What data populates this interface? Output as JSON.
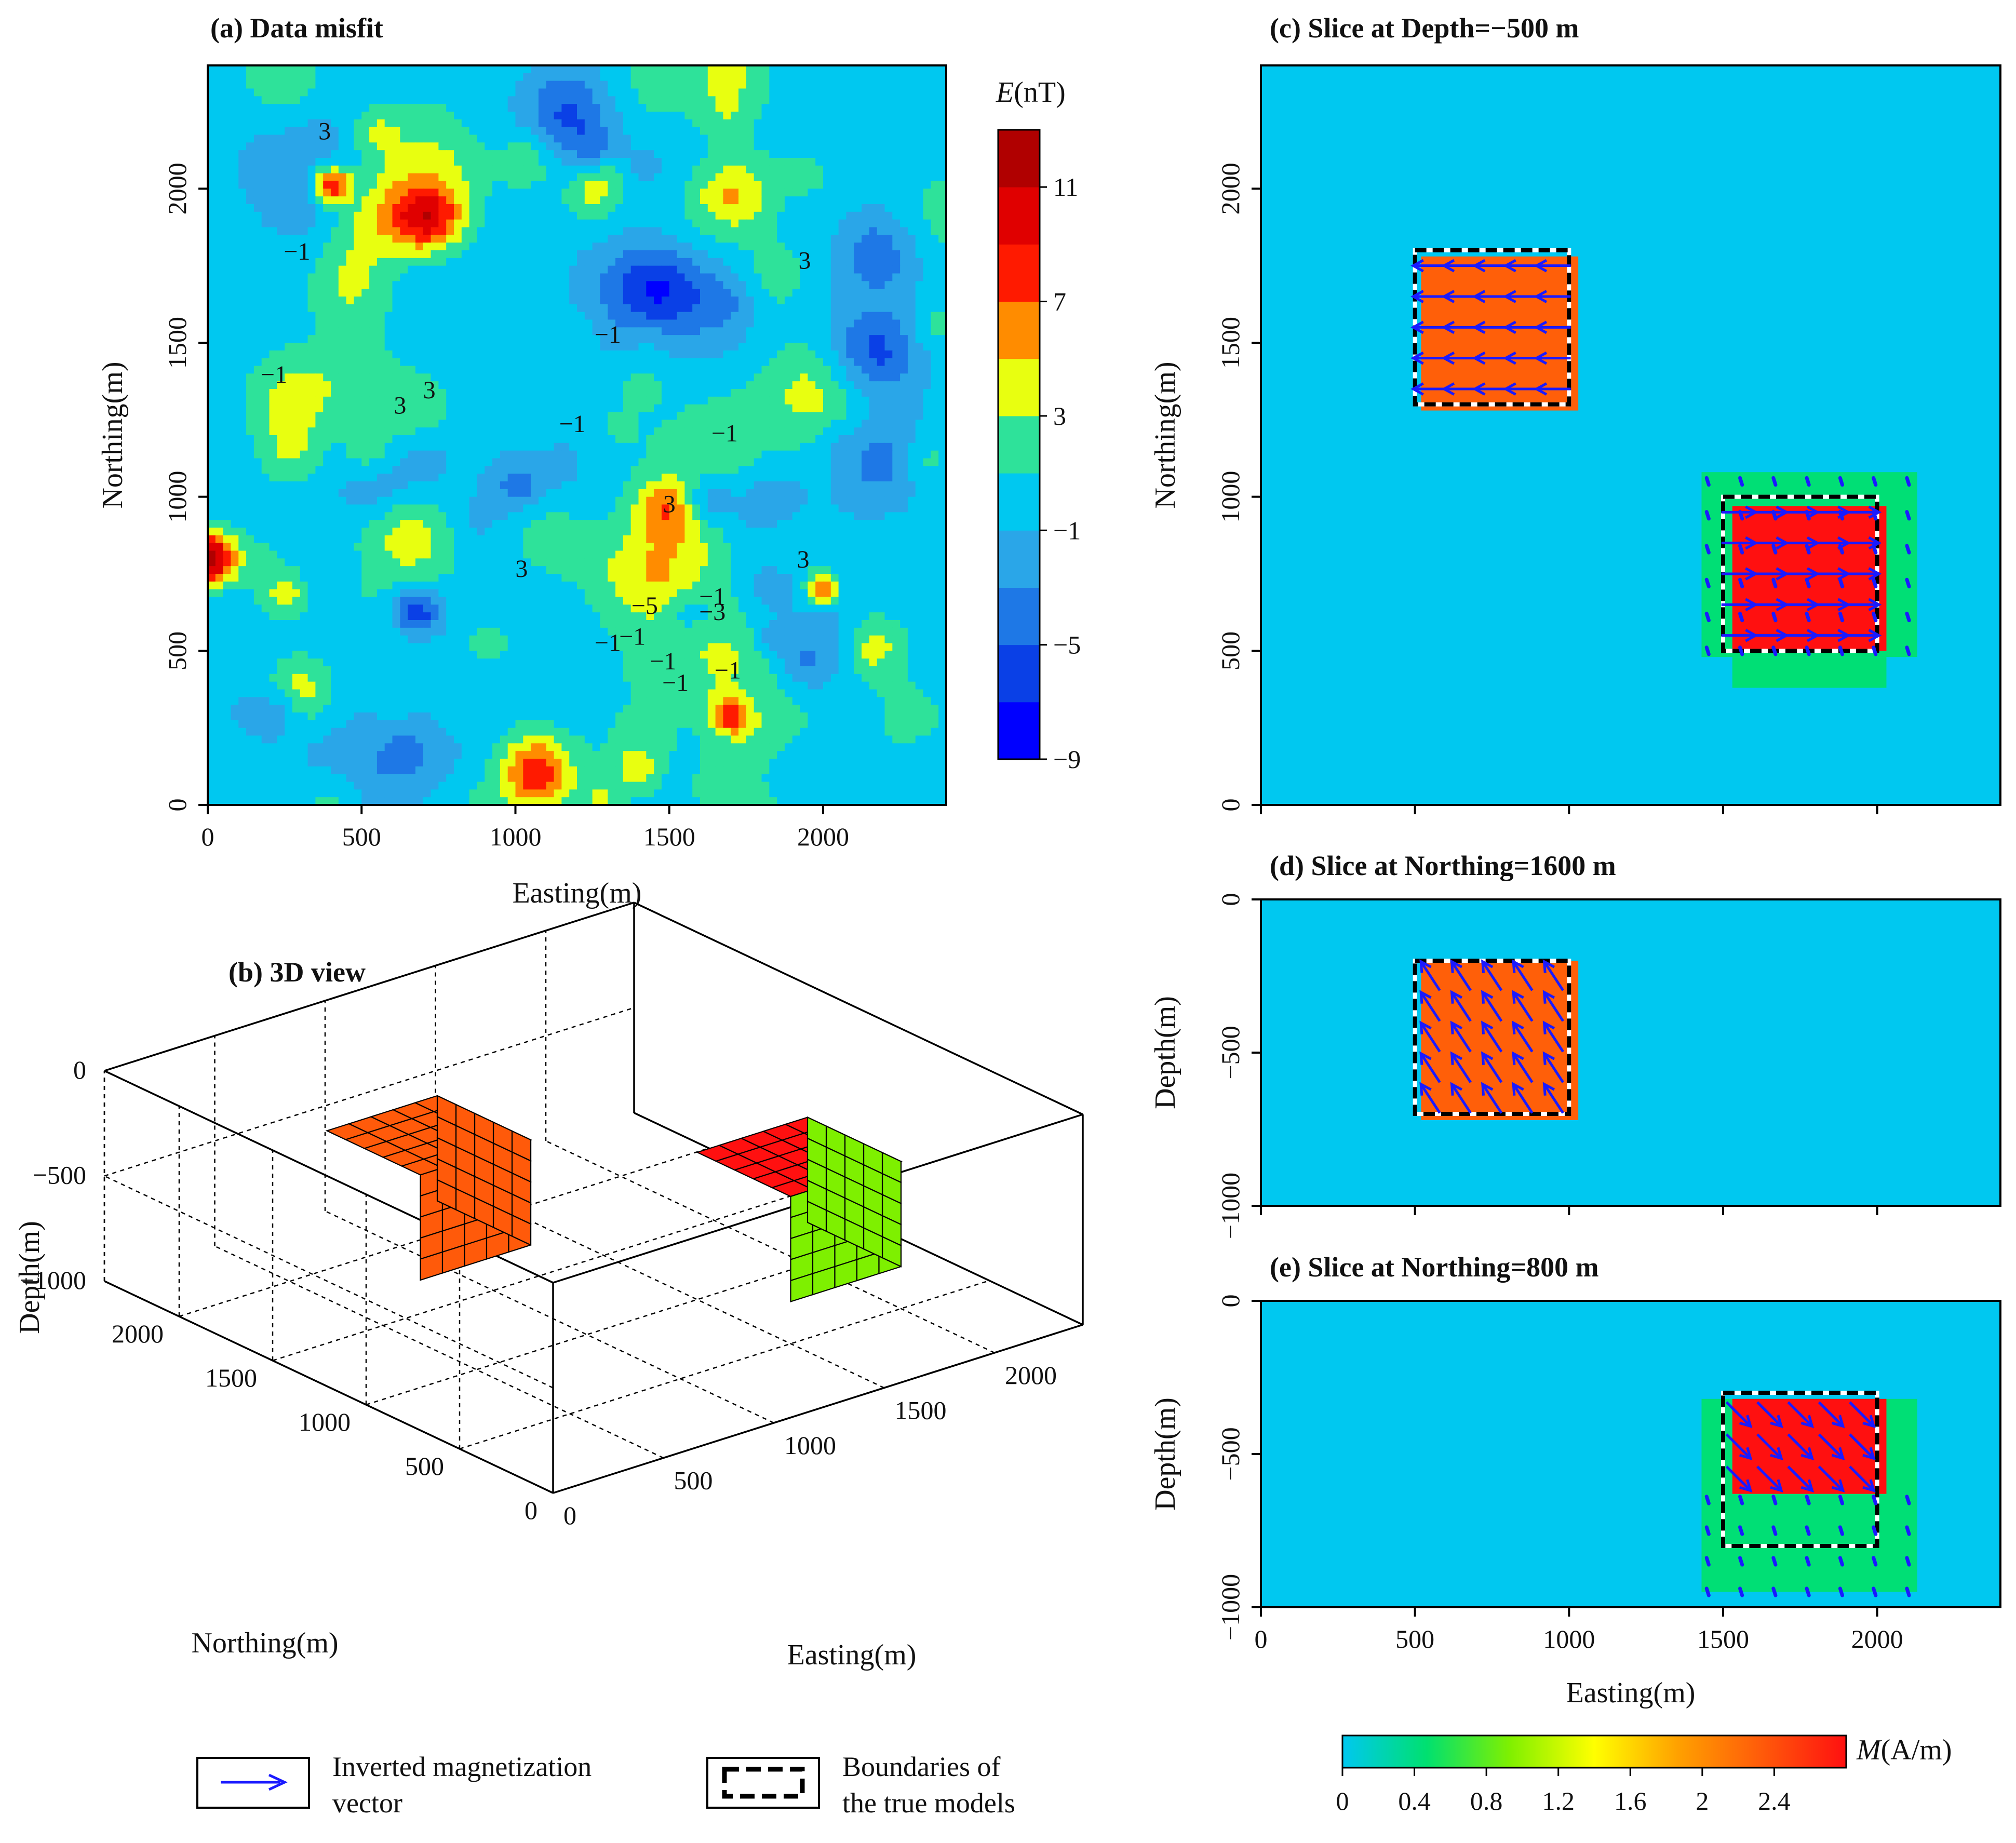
{
  "chart_data": [
    {
      "id": "a",
      "type": "contour",
      "title": "(a) Data misfit",
      "xlabel": "Easting(m)",
      "ylabel": "Northing(m)",
      "xlim": [
        0,
        2400
      ],
      "ylim": [
        0,
        2400
      ],
      "xticks": [
        "0",
        "500",
        "1000",
        "1500",
        "2000"
      ],
      "yticks": [
        "0",
        "500",
        "1000",
        "1500",
        "2000"
      ],
      "colorbar": {
        "title_italic": "E",
        "title_rest": "(nT)",
        "levels": [
          -9,
          -7,
          -5,
          -3,
          -1,
          1,
          3,
          5,
          7,
          9,
          11,
          13
        ],
        "tick_labels": [
          "11",
          "7",
          "3",
          "−1",
          "−5",
          "−9"
        ],
        "colors": [
          "#0000ff",
          "#0a40e6",
          "#1e78e6",
          "#2aa6e8",
          "#00c8f0",
          "#2ee29a",
          "#e8ff10",
          "#ff8c00",
          "#ff1a00",
          "#e00000",
          "#b00000"
        ]
      },
      "contour_labels": [
        "3",
        "−1",
        "3",
        "−1",
        "3",
        "−1",
        "−1",
        "3",
        "−1",
        "3",
        "3",
        "−1",
        "3",
        "−1",
        "−1",
        "−1",
        "−1",
        "−3",
        "−5",
        "−1"
      ]
    },
    {
      "id": "b",
      "type": "3d-voxel",
      "title": "(b) 3D view",
      "zlabel": "Depth(m)",
      "ylabel": "Northing(m)",
      "xlabel": "Easting(m)",
      "zticks": [
        "0",
        "−500",
        "−1000"
      ],
      "yticks": [
        "2000",
        "1500",
        "1000",
        "500",
        "0"
      ],
      "xticks": [
        "0",
        "500",
        "1000",
        "1500",
        "2000"
      ],
      "bodies": [
        {
          "name": "body-1",
          "easting": [
            500,
            1000
          ],
          "northing": [
            1300,
            1800
          ],
          "depth": [
            -200,
            -700
          ],
          "color": "#ff5a0a"
        },
        {
          "name": "body-2",
          "easting": [
            1500,
            2000
          ],
          "northing": [
            500,
            1000
          ],
          "depth": [
            -300,
            -800
          ],
          "color": "#7ef000",
          "top_color": "#ff1010"
        }
      ]
    },
    {
      "id": "c",
      "type": "heatmap-slice",
      "title": "(c) Slice at Depth=−500 m",
      "ylabel": "Northing(m)",
      "xlim": [
        0,
        2400
      ],
      "ylim": [
        0,
        2400
      ],
      "yticks": [
        "0",
        "500",
        "1000",
        "1500",
        "2000"
      ],
      "cells": [
        {
          "easting": [
            1430,
            2130
          ],
          "northing": [
            480,
            1080
          ],
          "value": 0.45
        },
        {
          "easting": [
            1530,
            2030
          ],
          "northing": [
            380,
            480
          ],
          "value": 0.45
        },
        {
          "easting": [
            1530,
            2030
          ],
          "northing": [
            500,
            970
          ],
          "value": 2.8
        },
        {
          "easting": [
            520,
            1030
          ],
          "northing": [
            1280,
            1780
          ],
          "value": 2.3
        }
      ],
      "true_boxes": [
        {
          "easting": [
            500,
            1000
          ],
          "northing": [
            1300,
            1800
          ]
        },
        {
          "easting": [
            1500,
            2000
          ],
          "northing": [
            500,
            1000
          ]
        }
      ],
      "vectors": [
        {
          "easting": [
            550,
            950
          ],
          "northing": [
            1350,
            1750
          ],
          "count": [
            5,
            5
          ],
          "direction": "west",
          "length": 0.9
        },
        {
          "easting": [
            1550,
            1950
          ],
          "northing": [
            550,
            950
          ],
          "count": [
            5,
            5
          ],
          "direction": "east",
          "length": 0.9
        },
        {
          "easting": [
            1450,
            2100
          ],
          "northing": [
            500,
            1050
          ],
          "count": [
            7,
            6
          ],
          "direction": "dot",
          "length": 0.1
        }
      ]
    },
    {
      "id": "d",
      "type": "heatmap-slice",
      "title": "(d) Slice at Northing=1600 m",
      "ylabel": "Depth(m)",
      "xlim": [
        0,
        2400
      ],
      "ylim": [
        -1000,
        0
      ],
      "yticks": [
        "0",
        "−500",
        "−1000"
      ],
      "cells": [
        {
          "easting": [
            520,
            1030
          ],
          "northing": [
            -720,
            -200
          ],
          "value": 2.3
        }
      ],
      "true_boxes": [
        {
          "easting": [
            500,
            1000
          ],
          "northing": [
            -700,
            -200
          ]
        }
      ],
      "vectors": [
        {
          "easting": [
            550,
            950
          ],
          "northing": [
            -650,
            -250
          ],
          "count": [
            5,
            5
          ],
          "direction": "north-west",
          "length": 0.9
        }
      ]
    },
    {
      "id": "e",
      "type": "heatmap-slice",
      "title": "(e) Slice at Northing=800 m",
      "xlabel": "Easting(m)",
      "ylabel": "Depth(m)",
      "xlim": [
        0,
        2400
      ],
      "ylim": [
        -1000,
        0
      ],
      "xticks": [
        "0",
        "500",
        "1000",
        "1500",
        "2000"
      ],
      "yticks": [
        "0",
        "−500",
        "−1000"
      ],
      "cells": [
        {
          "easting": [
            1430,
            2130
          ],
          "northing": [
            -950,
            -320
          ],
          "value": 0.45
        },
        {
          "easting": [
            1530,
            2030
          ],
          "northing": [
            -630,
            -320
          ],
          "value": 2.8
        }
      ],
      "true_boxes": [
        {
          "easting": [
            1500,
            2000
          ],
          "northing": [
            -800,
            -300
          ]
        }
      ],
      "vectors": [
        {
          "easting": [
            1550,
            1950
          ],
          "northing": [
            -580,
            -370
          ],
          "count": [
            5,
            3
          ],
          "direction": "south-east",
          "length": 0.9
        },
        {
          "easting": [
            1450,
            2100
          ],
          "northing": [
            -950,
            -650
          ],
          "count": [
            7,
            4
          ],
          "direction": "dot",
          "length": 0.1
        }
      ]
    }
  ],
  "colorbar_m": {
    "label_italic": "M",
    "label_rest": "(A/m)",
    "ticks": [
      "0",
      "0.4",
      "0.8",
      "1.2",
      "1.6",
      "2",
      "2.4"
    ],
    "values": [
      0,
      0.4,
      0.8,
      1.2,
      1.6,
      2,
      2.4
    ],
    "max": 2.8,
    "stops": [
      "#00c8f0",
      "#00e070",
      "#80f000",
      "#ffff00",
      "#ffa000",
      "#ff5a0a",
      "#ff1010"
    ]
  },
  "legend": {
    "vector_label_line1": "Inverted magnetization",
    "vector_label_line2": "vector",
    "box_label_line1": "Boundaries of",
    "box_label_line2": "the true models"
  },
  "colors": {
    "background_slice": "#00c8f0",
    "vector": "#1a1aff",
    "box_dash": "#000000"
  }
}
